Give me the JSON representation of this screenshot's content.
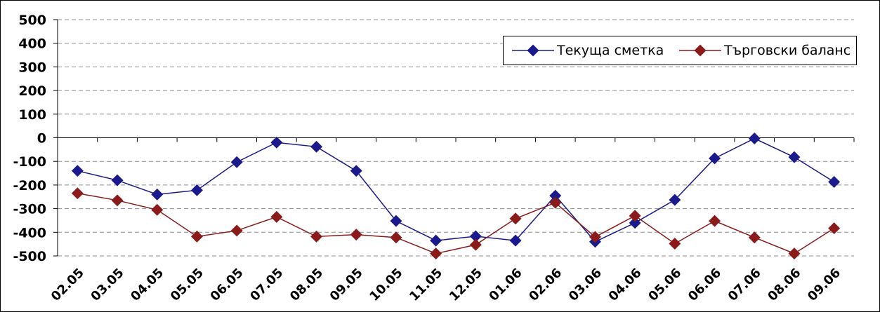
{
  "chart_data": {
    "type": "line",
    "categories": [
      "02.05",
      "03.05",
      "04.05",
      "05.05",
      "06.05",
      "07.05",
      "08.05",
      "09.05",
      "10.05",
      "11.05",
      "12.05",
      "01.06",
      "02.06",
      "03.06",
      "04.06",
      "05.06",
      "06.06",
      "07.06",
      "08.06",
      "09.06"
    ],
    "series": [
      {
        "name": "Текуща сметка",
        "color": "#1a1a8c",
        "values": [
          -140,
          -180,
          -240,
          -222,
          -103,
          -20,
          -38,
          -140,
          -352,
          -435,
          -417,
          -435,
          -245,
          -440,
          -360,
          -263,
          -87,
          -3,
          -82,
          -187
        ]
      },
      {
        "name": "Търговски баланс",
        "color": "#8b1a1a",
        "values": [
          -235,
          -265,
          -305,
          -418,
          -393,
          -335,
          -418,
          -410,
          -422,
          -490,
          -453,
          -342,
          -275,
          -420,
          -330,
          -448,
          -352,
          -422,
          -490,
          -383
        ]
      }
    ],
    "ylim": [
      -500,
      500
    ],
    "yticks": [
      500,
      400,
      300,
      200,
      100,
      0,
      -100,
      -200,
      -300,
      -400,
      -500
    ],
    "grid": true,
    "legend_position": "top-right",
    "title": "",
    "xlabel": "",
    "ylabel": ""
  }
}
